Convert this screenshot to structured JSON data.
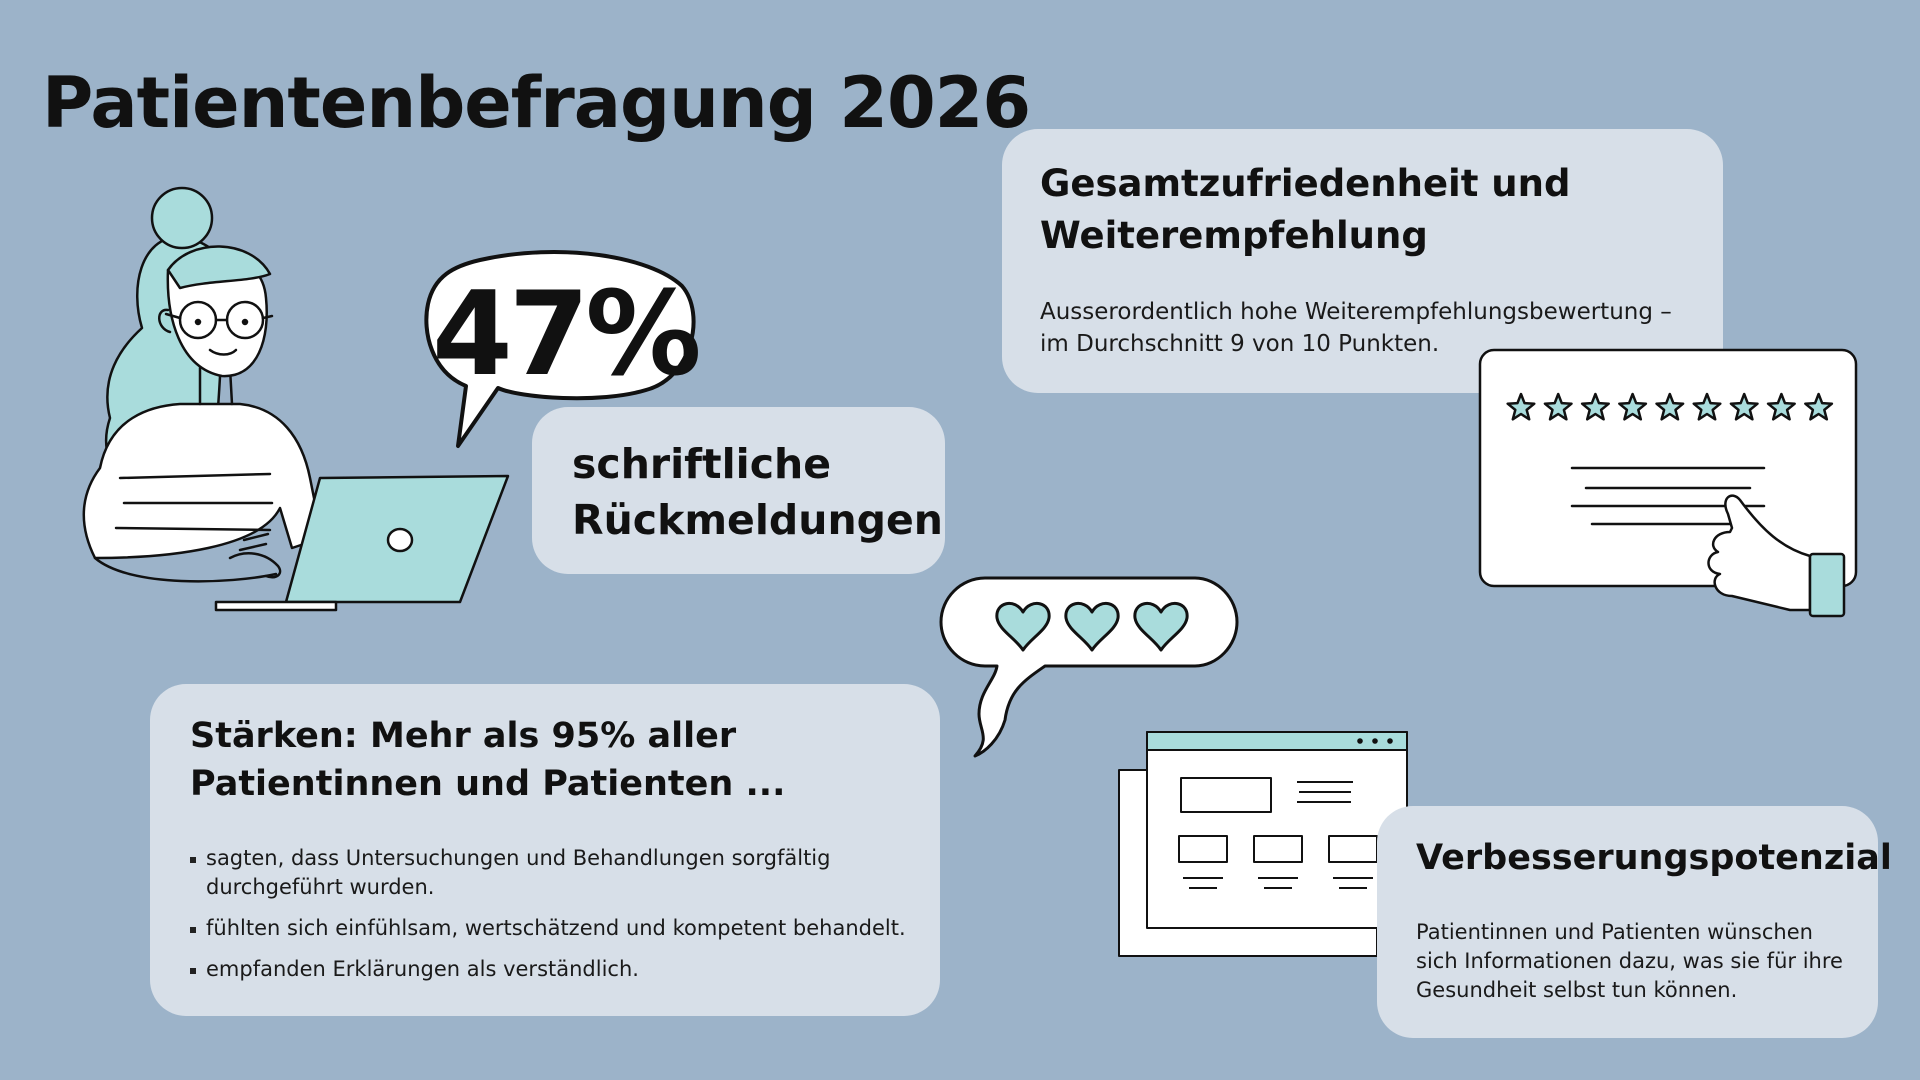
{
  "page": {
    "title": "Patientenbefragung 2026"
  },
  "response_rate": {
    "value": "47%",
    "label": "schriftliche Rückmeldungen"
  },
  "satisfaction": {
    "heading": "Gesamtzufriedenheit und Weiterempfehlung",
    "text": "Ausserordentlich hohe Weiterempfehlungsbewertung – im Durchschnitt 9 von 10 Punkten.",
    "stars_shown": 9
  },
  "strengths": {
    "heading": "Stärken: Mehr als 95% aller Patientinnen und Patienten ...",
    "items": [
      "sagten, dass Untersuchungen und Behandlungen sorgfältig durchgeführt wurden.",
      "fühlten sich einfühlsam, wertschätzend und kompetent behandelt.",
      "empfanden Erklärungen als verständlich."
    ]
  },
  "improvement": {
    "heading": "Verbesserungspotenzial",
    "text": "Patientinnen und Patienten wünschen sich Informationen dazu, was sie für ihre Gesundheit selbst tun können."
  },
  "colors": {
    "background": "#9cb3c9",
    "card": "#d7dfe8",
    "accent": "#a9dcdc",
    "ink": "#111111"
  },
  "icons": [
    "woman-with-laptop-icon",
    "speech-bubble-icon",
    "star-rating-card-icon",
    "thumbs-up-icon",
    "heart-speech-bubble-icon",
    "browser-window-icon"
  ]
}
